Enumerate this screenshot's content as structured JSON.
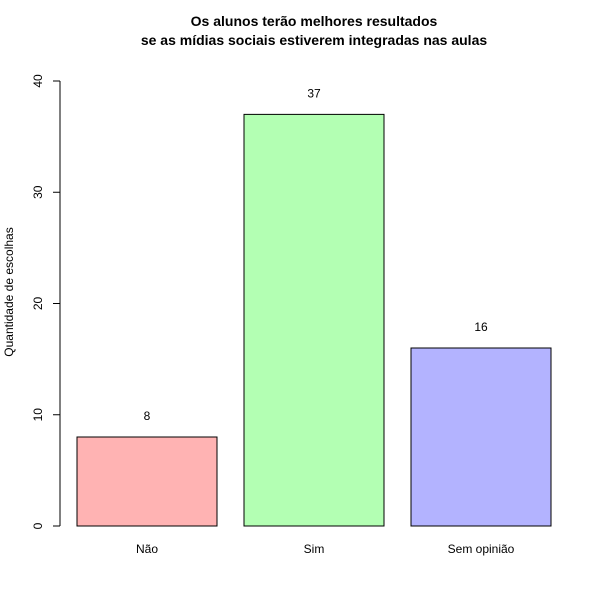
{
  "chart_data": {
    "type": "bar",
    "title_lines": [
      "Os alunos terão melhores resultados",
      "se as mídias sociais estiverem integradas nas aulas"
    ],
    "xlabel": "",
    "ylabel": "Quantidade de escolhas",
    "categories": [
      "Não",
      "Sim",
      "Sem opinião"
    ],
    "values": [
      8,
      37,
      16
    ],
    "data_labels": [
      "8",
      "37",
      "16"
    ],
    "colors": [
      "#ffb3b3",
      "#b3ffb3",
      "#b3b3ff"
    ],
    "ylim": [
      0,
      40
    ],
    "yticks": [
      0,
      10,
      20,
      30,
      40
    ],
    "ytick_labels": [
      "0",
      "10",
      "20",
      "30",
      "40"
    ],
    "grid": false,
    "legend": "none"
  }
}
